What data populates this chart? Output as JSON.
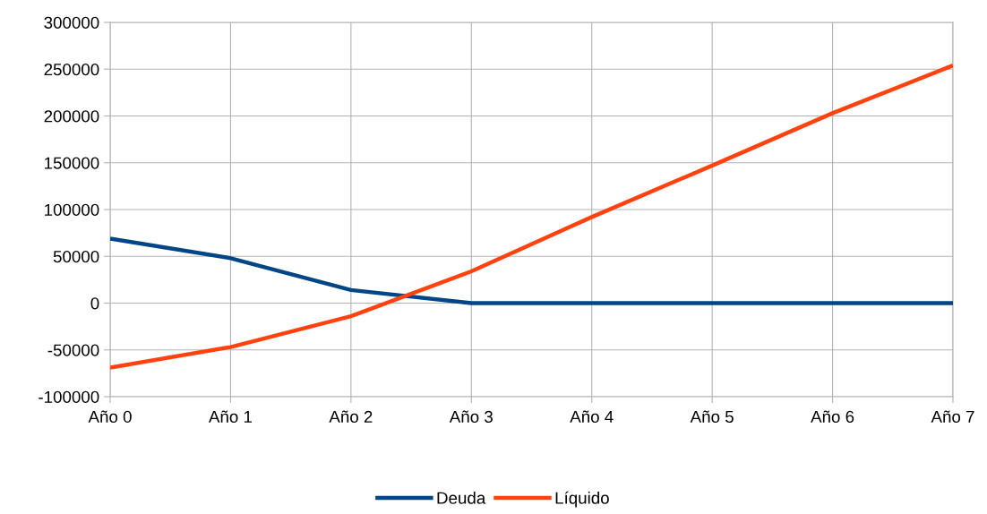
{
  "chart_data": {
    "type": "line",
    "categories": [
      "Año 0",
      "Año 1",
      "Año 2",
      "Año 3",
      "Año 4",
      "Año 5",
      "Año 6",
      "Año 7"
    ],
    "series": [
      {
        "name": "Deuda",
        "color": "#004586",
        "values": [
          69000,
          48000,
          14000,
          0,
          0,
          0,
          0,
          0
        ]
      },
      {
        "name": "Líquido",
        "color": "#ff420e",
        "values": [
          -69000,
          -47000,
          -14000,
          34000,
          92000,
          147000,
          203000,
          254000
        ]
      }
    ],
    "ylim": [
      -100000,
      300000
    ],
    "yticks": [
      -100000,
      -50000,
      0,
      50000,
      100000,
      150000,
      200000,
      250000,
      300000
    ],
    "grid": true,
    "legend": "bottom",
    "marker": "none",
    "line_style": "solid"
  }
}
